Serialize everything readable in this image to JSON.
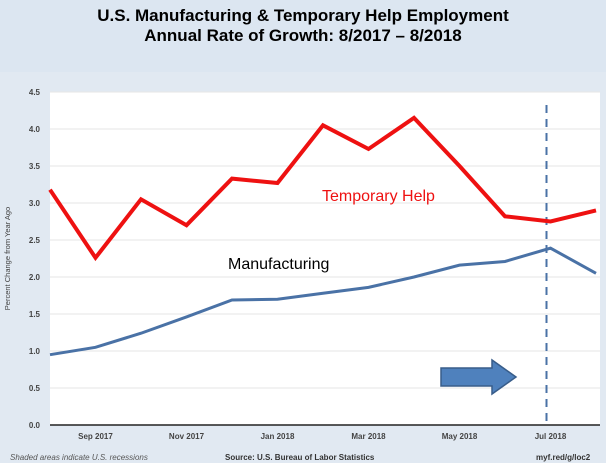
{
  "chart_data": {
    "type": "line",
    "title": "U.S. Manufacturing & Temporary Help Employment",
    "subtitle": "Annual Rate of Growth:  8/2017 – 8/2018",
    "ylabel": "Percent Change from Year Ago",
    "xlabel": "",
    "ylim": [
      0,
      4.5
    ],
    "yticks": [
      "0.0",
      "0.5",
      "1.0",
      "1.5",
      "2.0",
      "2.5",
      "3.0",
      "3.5",
      "4.0",
      "4.5"
    ],
    "x": [
      "Aug 2017",
      "Sep 2017",
      "Oct 2017",
      "Nov 2017",
      "Dec 2017",
      "Jan 2018",
      "Feb 2018",
      "Mar 2018",
      "Apr 2018",
      "May 2018",
      "Jun 2018",
      "Jul 2018",
      "Aug 2018"
    ],
    "xticks": [
      "Sep 2017",
      "Nov 2017",
      "Jan 2018",
      "Mar 2018",
      "May 2018",
      "Jul 2018"
    ],
    "series": [
      {
        "name": "Temporary Help",
        "color": "#ee1111",
        "values": [
          3.18,
          2.26,
          3.05,
          2.7,
          3.33,
          3.27,
          4.05,
          3.73,
          4.15,
          3.5,
          2.82,
          2.75,
          2.9
        ]
      },
      {
        "name": "Manufacturing",
        "color": "#4a72a6",
        "values": [
          0.95,
          1.05,
          1.24,
          1.46,
          1.69,
          1.7,
          1.78,
          1.86,
          2.0,
          2.16,
          2.21,
          2.39,
          2.05
        ]
      }
    ],
    "annotations": {
      "vertical_dashed_line_at": "Jul 2018",
      "arrow": "right"
    },
    "grid": true
  },
  "footer": {
    "left": "Shaded areas indicate U.S. recessions",
    "center": "Source: U.S. Bureau of Labor Statistics",
    "right": "myf.red/g/loc2"
  }
}
